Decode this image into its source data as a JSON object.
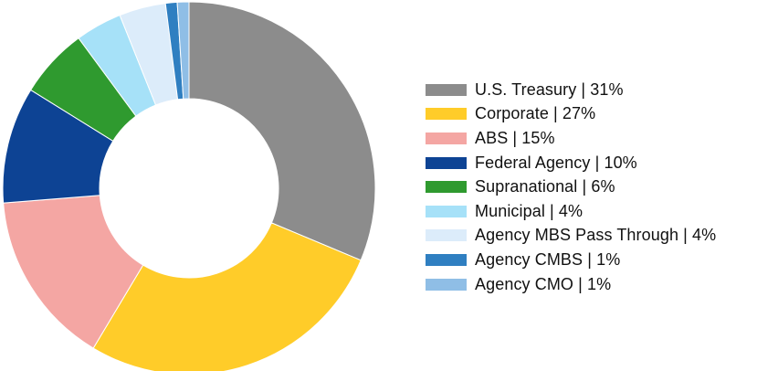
{
  "chart_data": {
    "type": "pie",
    "title": "",
    "slices": [
      {
        "label": "U.S. Treasury | 31%",
        "value": 31,
        "color": "#8c8c8c"
      },
      {
        "label": "Corporate | 27%",
        "value": 27,
        "color": "#ffcc29"
      },
      {
        "label": "ABS | 15%",
        "value": 15,
        "color": "#f4a6a3"
      },
      {
        "label": "Federal Agency | 10%",
        "value": 10,
        "color": "#0d4394"
      },
      {
        "label": "Supranational | 6%",
        "value": 6,
        "color": "#2f9a2f"
      },
      {
        "label": "Municipal | 4%",
        "value": 4,
        "color": "#a6e1f8"
      },
      {
        "label": "Agency MBS Pass Through | 4%",
        "value": 4,
        "color": "#dcecfa"
      },
      {
        "label": "Agency CMBS | 1%",
        "value": 1,
        "color": "#2f7fc1"
      },
      {
        "label": "Agency CMO | 1%",
        "value": 1,
        "color": "#8fbee6"
      }
    ],
    "legend": "right"
  }
}
